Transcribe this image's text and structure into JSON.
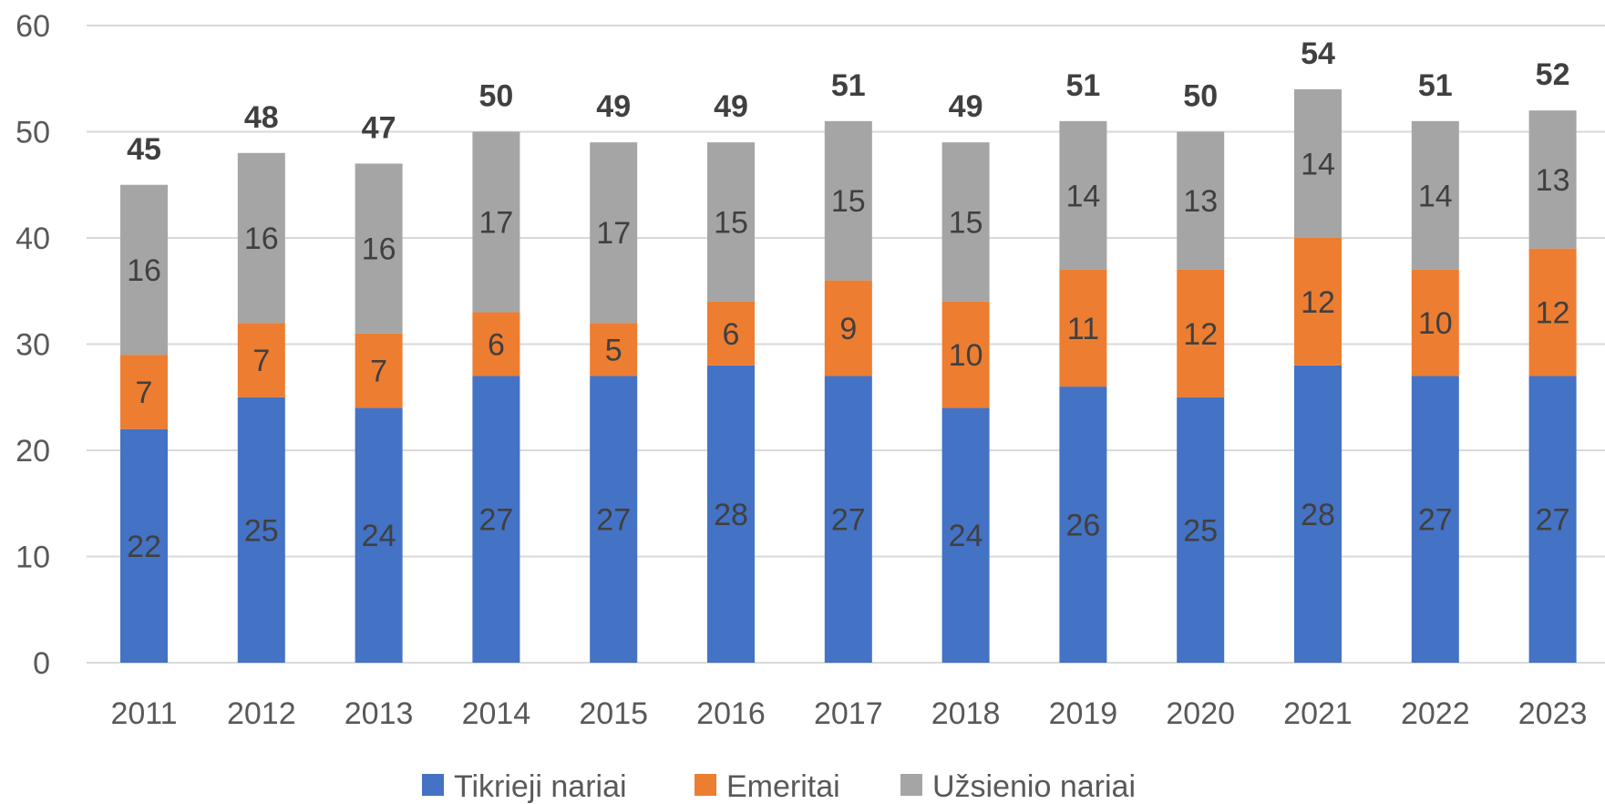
{
  "chart_data": {
    "type": "bar",
    "stacked": true,
    "title": "",
    "xlabel": "",
    "ylabel": "",
    "ylim": [
      0,
      60
    ],
    "yticks": [
      0,
      10,
      20,
      30,
      40,
      50,
      60
    ],
    "grid": true,
    "legend_position": "bottom",
    "categories": [
      "2011",
      "2012",
      "2013",
      "2014",
      "2015",
      "2016",
      "2017",
      "2018",
      "2019",
      "2020",
      "2021",
      "2022",
      "2023"
    ],
    "series": [
      {
        "name": "Tikrieji nariai",
        "color": "#4472C4",
        "values": [
          22,
          25,
          24,
          27,
          27,
          28,
          27,
          24,
          26,
          25,
          28,
          27,
          27
        ]
      },
      {
        "name": "Emeritai",
        "color": "#ED7D31",
        "values": [
          7,
          7,
          7,
          6,
          5,
          6,
          9,
          10,
          11,
          12,
          12,
          10,
          12
        ]
      },
      {
        "name": "Užsienio nariai",
        "color": "#A5A5A5",
        "values": [
          16,
          16,
          16,
          17,
          17,
          15,
          15,
          15,
          14,
          13,
          14,
          14,
          13
        ]
      }
    ],
    "totals": [
      45,
      48,
      47,
      50,
      49,
      49,
      51,
      49,
      51,
      50,
      54,
      51,
      52
    ]
  }
}
